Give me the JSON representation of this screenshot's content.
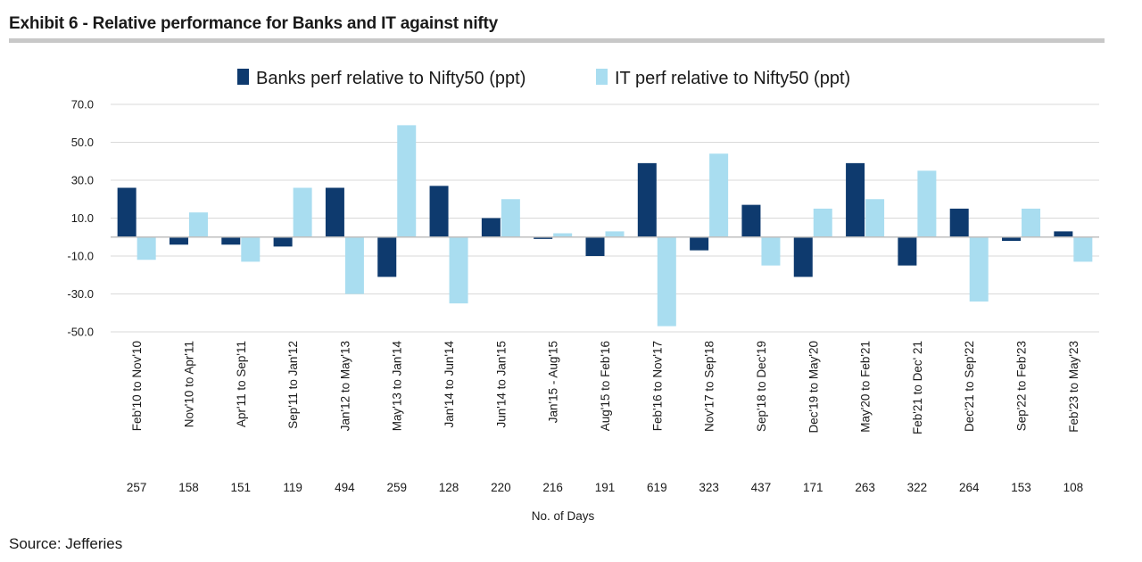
{
  "header": {
    "title": "Exhibit 6 - Relative performance for Banks and IT against nifty"
  },
  "footer": {
    "source": "Source: Jefferies"
  },
  "colors": {
    "banks": "#0e3a6e",
    "it": "#a9ddf0",
    "grid": "#d9d9d9",
    "zero_line": "#bfbfbf"
  },
  "chart_data": {
    "type": "bar",
    "title": "Relative performance for Banks and IT against nifty",
    "xlabel": "No. of Days",
    "ylabel": "",
    "ylim": [
      -50,
      70
    ],
    "yticks": [
      70,
      50,
      30,
      10,
      -10,
      -30,
      -50
    ],
    "ytick_labels": [
      "70.0",
      "50.0",
      "30.0",
      "10.0",
      "-10.0",
      "-30.0",
      "-50.0"
    ],
    "grid": true,
    "legend_position": "top-center",
    "categories": [
      "Feb'10 to Nov'10",
      "Nov'10 to Apr'11",
      "Apr'11 to Sep'11",
      "Sep'11 to Jan'12",
      "Jan'12 to May'13",
      "May'13 to Jan'14",
      "Jan'14 to Jun'14",
      "Jun'14 to Jan'15",
      "Jan'15 - Aug'15",
      "Aug'15 to Feb'16",
      "Feb'16 to Nov'17",
      "Nov'17 to Sep'18",
      "Sep'18 to Dec'19",
      "Dec'19 to May'20",
      "May'20 to Feb'21",
      "Feb'21 to Dec' 21",
      "Dec'21 to Sep'22",
      "Sep'22 to Feb'23",
      "Feb'23 to May'23"
    ],
    "days": [
      "257",
      "158",
      "151",
      "119",
      "494",
      "259",
      "128",
      "220",
      "216",
      "191",
      "619",
      "323",
      "437",
      "171",
      "263",
      "322",
      "264",
      "153",
      "108"
    ],
    "series": [
      {
        "name": "Banks perf relative to Nifty50 (ppt)",
        "values": [
          26,
          -4,
          -4,
          -5,
          26,
          -21,
          27,
          10,
          -1,
          -10,
          39,
          -7,
          17,
          -21,
          39,
          -15,
          15,
          -2,
          3
        ]
      },
      {
        "name": "IT perf relative to Nifty50 (ppt)",
        "values": [
          -12,
          13,
          -13,
          26,
          -30,
          59,
          -35,
          20,
          2,
          3,
          -47,
          44,
          -15,
          15,
          20,
          35,
          -34,
          15,
          -13
        ]
      }
    ]
  }
}
